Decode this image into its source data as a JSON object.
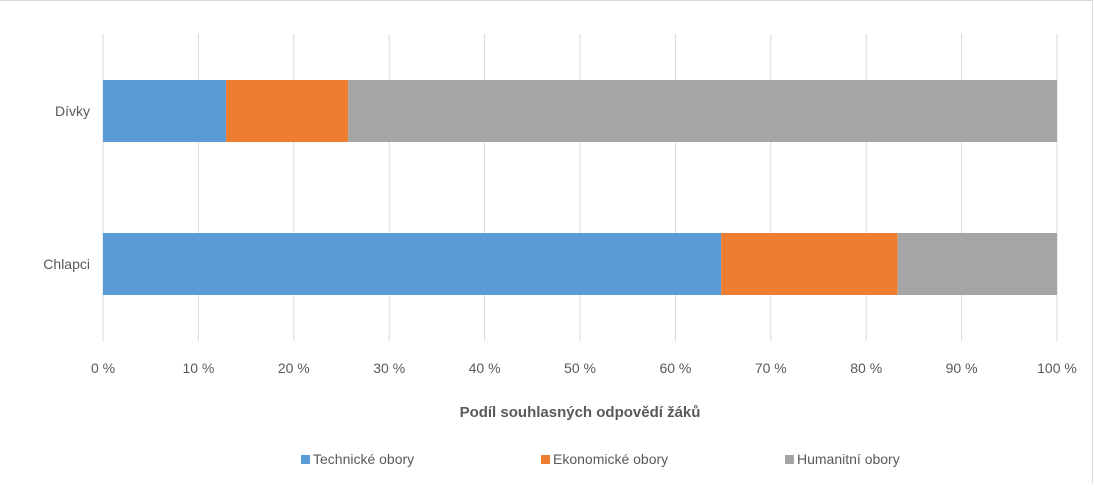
{
  "chart_data": {
    "type": "bar",
    "orientation": "horizontal",
    "stacked": "percent",
    "categories": [
      "Dívky",
      "Chlapci"
    ],
    "series": [
      {
        "name": "Technické obory",
        "color": "#5b9bd5",
        "values": [
          12.9,
          64.8
        ]
      },
      {
        "name": "Ekonomické obory",
        "color": "#ed7d31",
        "values": [
          12.8,
          18.5
        ]
      },
      {
        "name": "Humanitní obory",
        "color": "#a5a5a5",
        "values": [
          74.3,
          16.7
        ]
      }
    ],
    "xlabel": "Podíl souhlasných  odpovědí žáků",
    "xlim": [
      0,
      100
    ],
    "x_ticks": [
      "0 %",
      "10 %",
      "20 %",
      "30 %",
      "40 %",
      "50 %",
      "60 %",
      "70 %",
      "80 %",
      "90 %",
      "100 %"
    ],
    "grid": true,
    "legend_position": "bottom"
  }
}
